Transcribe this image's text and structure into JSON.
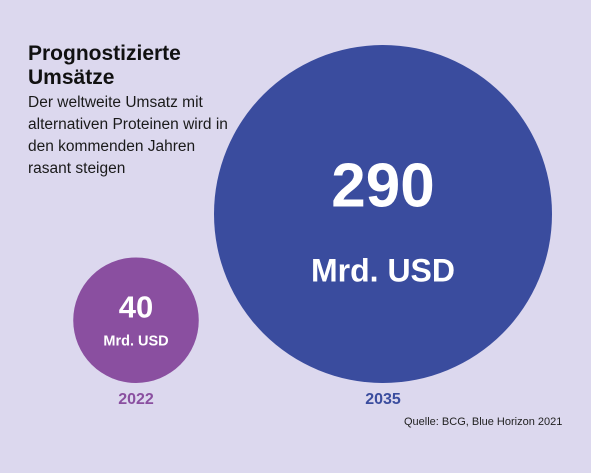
{
  "chart_data": {
    "type": "bubble",
    "title": [
      "Prognostizierte",
      "Umsätze"
    ],
    "subtitle": "Der weltweite Umsatz mit alternativen Proteinen wird in den kommenden Jahren rasant steigen",
    "unit": "Mrd. USD",
    "categories": [
      "2022",
      "2035"
    ],
    "values": [
      40,
      290
    ],
    "colors": [
      "#8a4fa0",
      "#3a4c9e"
    ],
    "source": "Quelle: BCG, Blue Horizon 2021"
  }
}
